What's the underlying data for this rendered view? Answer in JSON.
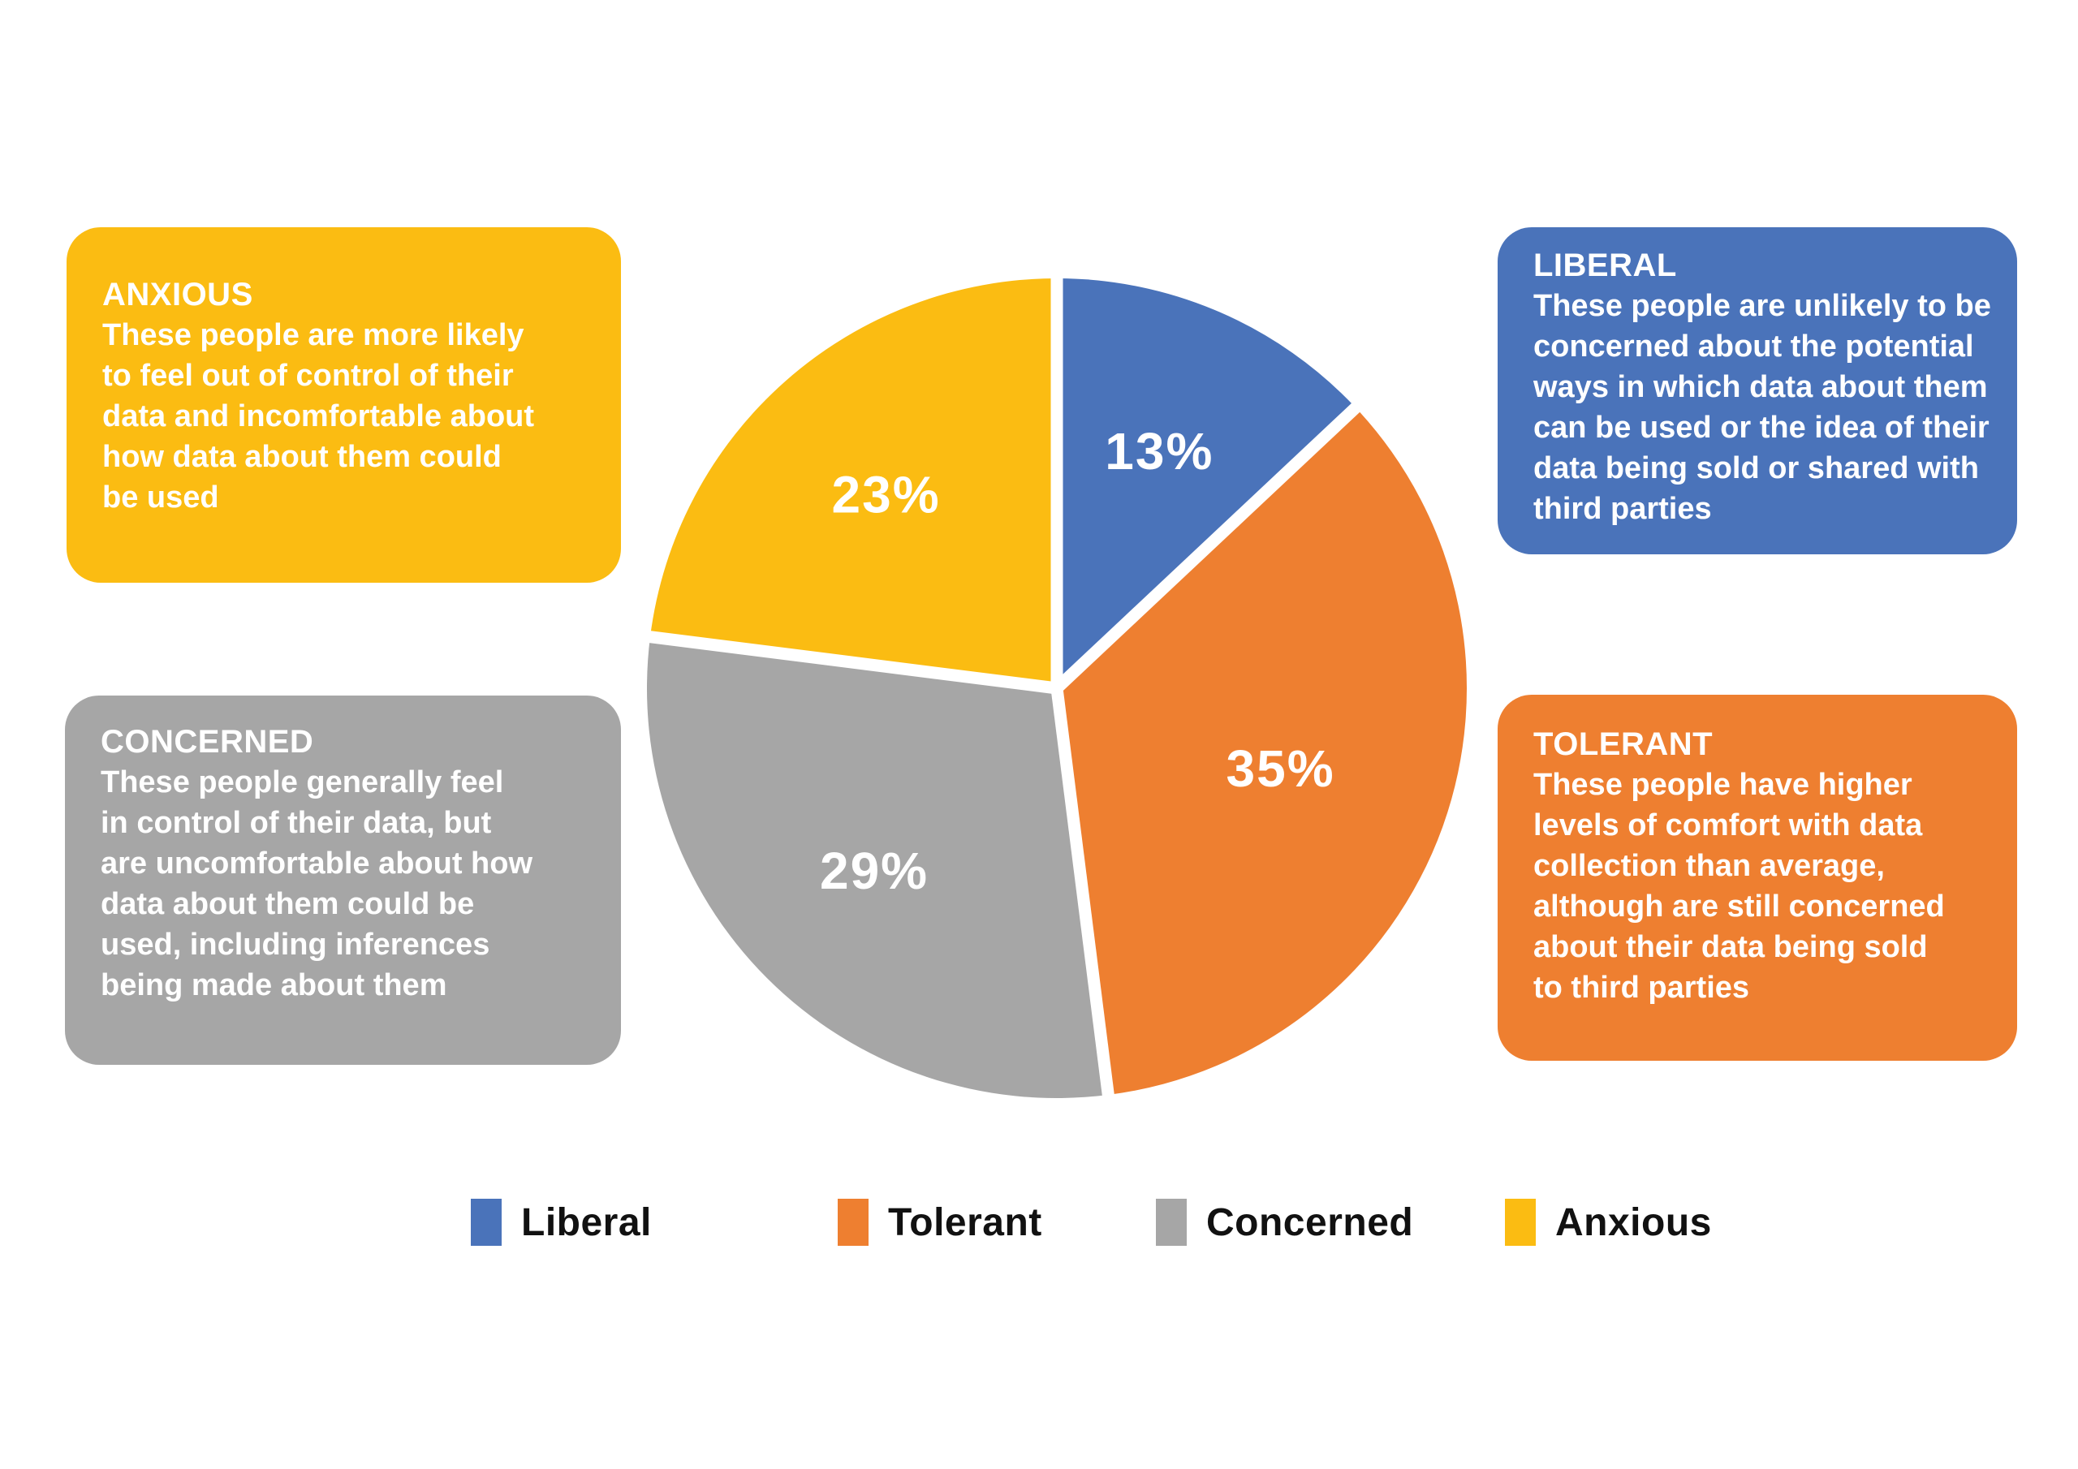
{
  "chart_data": {
    "type": "pie",
    "title": "",
    "slices": [
      {
        "label": "Liberal",
        "value": 13,
        "color": "#4A73BA"
      },
      {
        "label": "Tolerant",
        "value": 35,
        "color": "#EE7F30"
      },
      {
        "label": "Concerned",
        "value": 29,
        "color": "#A6A6A6"
      },
      {
        "label": "Anxious",
        "value": 23,
        "color": "#FBBC12"
      }
    ],
    "value_label_format": "percent",
    "slice_labels": [
      "13%",
      "35%",
      "29%",
      "23%"
    ],
    "start_angle_deg": 0,
    "direction": "clockwise",
    "legend_position": "bottom",
    "slice_separator_color": "#ffffff"
  },
  "callouts": {
    "anxious": {
      "title": "ANXIOUS",
      "body": "These people are more likely\nto feel out of control of their\ndata and incomfortable about\nhow data about them could\nbe used",
      "color": "#FBBC12"
    },
    "concerned": {
      "title": "CONCERNED",
      "body": "These people generally feel\nin control of their data, but\nare uncomfortable about how\ndata about them could be\nused, including inferences\nbeing made about them",
      "color": "#A6A6A6"
    },
    "liberal": {
      "title": "LIBERAL",
      "body": "These people are unlikely to be\nconcerned about the potential\nways in which data about them\ncan be used or the idea of their\ndata being sold or shared with\nthird parties",
      "color": "#4A73BA"
    },
    "tolerant": {
      "title": "TOLERANT",
      "body": "These people have higher\nlevels of comfort with data\ncollection than average,\nalthough are still concerned\nabout their data being sold\nto third parties",
      "color": "#EE7F30"
    }
  },
  "legend": {
    "items": [
      {
        "label": "Liberal"
      },
      {
        "label": "Tolerant"
      },
      {
        "label": "Concerned"
      },
      {
        "label": "Anxious"
      }
    ]
  }
}
